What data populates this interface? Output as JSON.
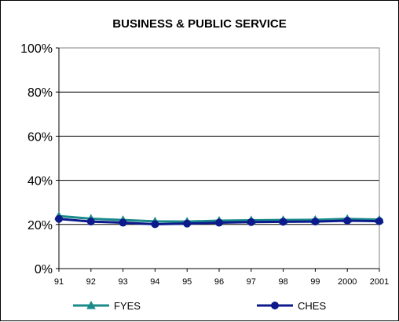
{
  "chart_data": {
    "type": "line",
    "title": "BUSINESS & PUBLIC SERVICE",
    "xlabel": "",
    "ylabel": "",
    "x": [
      "91",
      "92",
      "93",
      "94",
      "95",
      "96",
      "97",
      "98",
      "99",
      "2000",
      "2001"
    ],
    "ylim": [
      0,
      100
    ],
    "yticks": [
      0,
      20,
      40,
      60,
      80,
      100
    ],
    "ytick_labels": [
      "0%",
      "20%",
      "40%",
      "60%",
      "80%",
      "100%"
    ],
    "grid": true,
    "legend_position": "bottom",
    "series": [
      {
        "name": "FYES",
        "color": "#1a8a8a",
        "marker": "triangle",
        "values": [
          23.8,
          22.6,
          22.0,
          21.4,
          21.3,
          21.7,
          21.9,
          22.0,
          22.1,
          22.5,
          22.2
        ]
      },
      {
        "name": "CHES",
        "color": "#0d1a8c",
        "marker": "circle",
        "values": [
          22.5,
          21.3,
          20.8,
          20.1,
          20.4,
          20.8,
          21.1,
          21.2,
          21.3,
          21.7,
          21.5
        ]
      }
    ]
  }
}
